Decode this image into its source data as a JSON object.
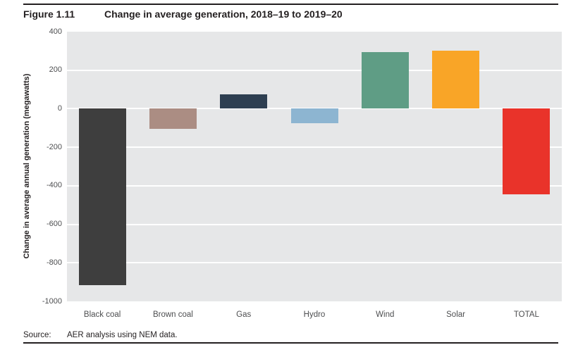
{
  "figure": {
    "label": "Figure 1.11",
    "title": "Change in average generation, 2018–19 to 2019–20"
  },
  "source": {
    "label": "Source:",
    "text": "AER analysis using NEM data."
  },
  "chart_data": {
    "type": "bar",
    "title": "Change in average generation, 2018–19 to 2019–20",
    "categories": [
      "Black coal",
      "Brown coal",
      "Gas",
      "Hydro",
      "Wind",
      "Solar",
      "TOTAL"
    ],
    "values": [
      -915,
      -105,
      75,
      -75,
      295,
      300,
      -445
    ],
    "bar_colors": [
      "#3e3e3e",
      "#ab8d83",
      "#2e3f51",
      "#8db5d1",
      "#5f9d85",
      "#f9a527",
      "#e9332a"
    ],
    "xlabel": "",
    "ylabel": "Change in average annual generation (megawatts)",
    "ylim": [
      -1000,
      400
    ],
    "yticks": [
      400,
      200,
      0,
      -200,
      -400,
      -600,
      -800,
      -1000
    ],
    "grid": true,
    "legend": "none",
    "plot_background": "#e6e7e8",
    "gridline_color": "#ffffff"
  }
}
